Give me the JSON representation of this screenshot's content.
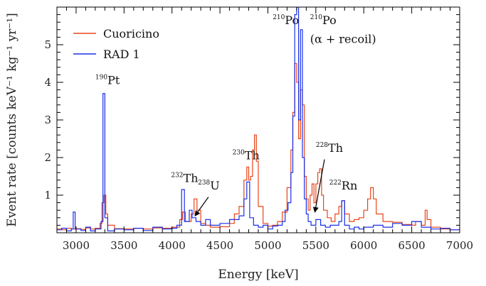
{
  "chart_data": {
    "type": "line",
    "xlabel": "Energy [keV]",
    "ylabel": "Event rate [counts keV⁻¹ kg⁻¹ yr⁻¹]",
    "xlim": [
      2800,
      7000
    ],
    "ylim": [
      0,
      6
    ],
    "x_ticks": [
      3000,
      3500,
      4000,
      4500,
      5000,
      5500,
      6000,
      6500,
      7000
    ],
    "y_ticks": [
      1,
      2,
      3,
      4,
      5
    ],
    "grid": false,
    "legend_position": "top-left",
    "series": [
      {
        "name": "Cuoricino",
        "color": "#e8451a",
        "points": [
          [
            2800,
            0.1
          ],
          [
            2850,
            0.08
          ],
          [
            2900,
            0.12
          ],
          [
            2950,
            0.1
          ],
          [
            3000,
            0.11
          ],
          [
            3050,
            0.09
          ],
          [
            3100,
            0.13
          ],
          [
            3150,
            0.1
          ],
          [
            3200,
            0.12
          ],
          [
            3250,
            0.25
          ],
          [
            3270,
            0.8
          ],
          [
            3290,
            1.0
          ],
          [
            3310,
            0.5
          ],
          [
            3330,
            0.2
          ],
          [
            3400,
            0.11
          ],
          [
            3500,
            0.1
          ],
          [
            3600,
            0.12
          ],
          [
            3700,
            0.1
          ],
          [
            3800,
            0.13
          ],
          [
            3900,
            0.12
          ],
          [
            4000,
            0.15
          ],
          [
            4080,
            0.35
          ],
          [
            4110,
            0.55
          ],
          [
            4140,
            0.3
          ],
          [
            4200,
            0.5
          ],
          [
            4230,
            0.9
          ],
          [
            4260,
            0.6
          ],
          [
            4300,
            0.25
          ],
          [
            4350,
            0.2
          ],
          [
            4400,
            0.15
          ],
          [
            4500,
            0.16
          ],
          [
            4600,
            0.25
          ],
          [
            4650,
            0.5
          ],
          [
            4700,
            0.7
          ],
          [
            4750,
            1.4
          ],
          [
            4780,
            1.75
          ],
          [
            4800,
            1.4
          ],
          [
            4820,
            1.5
          ],
          [
            4840,
            2.2
          ],
          [
            4860,
            2.6
          ],
          [
            4880,
            1.9
          ],
          [
            4900,
            0.7
          ],
          [
            4950,
            0.25
          ],
          [
            5000,
            0.18
          ],
          [
            5050,
            0.2
          ],
          [
            5100,
            0.3
          ],
          [
            5150,
            0.55
          ],
          [
            5200,
            1.2
          ],
          [
            5240,
            2.2
          ],
          [
            5260,
            3.2
          ],
          [
            5280,
            4.5
          ],
          [
            5300,
            4.0
          ],
          [
            5320,
            2.5
          ],
          [
            5340,
            3.8
          ],
          [
            5360,
            3.4
          ],
          [
            5380,
            1.5
          ],
          [
            5400,
            0.9
          ],
          [
            5420,
            0.6
          ],
          [
            5440,
            1.0
          ],
          [
            5460,
            1.3
          ],
          [
            5480,
            0.8
          ],
          [
            5500,
            1.3
          ],
          [
            5520,
            1.6
          ],
          [
            5540,
            1.7
          ],
          [
            5560,
            1.0
          ],
          [
            5580,
            0.6
          ],
          [
            5620,
            0.4
          ],
          [
            5660,
            0.3
          ],
          [
            5700,
            0.5
          ],
          [
            5740,
            0.7
          ],
          [
            5770,
            0.85
          ],
          [
            5800,
            0.5
          ],
          [
            5850,
            0.3
          ],
          [
            5900,
            0.35
          ],
          [
            5950,
            0.4
          ],
          [
            6000,
            0.6
          ],
          [
            6040,
            0.9
          ],
          [
            6070,
            1.2
          ],
          [
            6100,
            0.9
          ],
          [
            6130,
            0.5
          ],
          [
            6200,
            0.3
          ],
          [
            6300,
            0.28
          ],
          [
            6400,
            0.22
          ],
          [
            6500,
            0.2
          ],
          [
            6540,
            0.3
          ],
          [
            6600,
            0.2
          ],
          [
            6640,
            0.6
          ],
          [
            6660,
            0.35
          ],
          [
            6700,
            0.15
          ],
          [
            6800,
            0.1
          ],
          [
            6900,
            0.08
          ],
          [
            7000,
            0.1
          ]
        ]
      },
      {
        "name": "RAD 1",
        "color": "#1a30e8",
        "points": [
          [
            2800,
            0.08
          ],
          [
            2850,
            0.12
          ],
          [
            2900,
            0.05
          ],
          [
            2950,
            0.1
          ],
          [
            2970,
            0.55
          ],
          [
            2990,
            0.1
          ],
          [
            3050,
            0.06
          ],
          [
            3100,
            0.15
          ],
          [
            3150,
            0.05
          ],
          [
            3200,
            0.1
          ],
          [
            3260,
            0.3
          ],
          [
            3280,
            3.7
          ],
          [
            3300,
            0.4
          ],
          [
            3330,
            0.05
          ],
          [
            3400,
            0.1
          ],
          [
            3500,
            0.08
          ],
          [
            3600,
            0.12
          ],
          [
            3700,
            0.06
          ],
          [
            3800,
            0.15
          ],
          [
            3900,
            0.1
          ],
          [
            4000,
            0.12
          ],
          [
            4050,
            0.2
          ],
          [
            4100,
            1.15
          ],
          [
            4130,
            0.3
          ],
          [
            4180,
            0.6
          ],
          [
            4210,
            0.4
          ],
          [
            4250,
            0.3
          ],
          [
            4300,
            0.2
          ],
          [
            4350,
            0.35
          ],
          [
            4400,
            0.2
          ],
          [
            4500,
            0.25
          ],
          [
            4600,
            0.35
          ],
          [
            4700,
            0.45
          ],
          [
            4750,
            0.9
          ],
          [
            4780,
            1.35
          ],
          [
            4810,
            0.4
          ],
          [
            4850,
            0.2
          ],
          [
            4900,
            0.15
          ],
          [
            4950,
            0.2
          ],
          [
            5000,
            0.1
          ],
          [
            5050,
            0.18
          ],
          [
            5100,
            0.2
          ],
          [
            5150,
            0.3
          ],
          [
            5180,
            0.6
          ],
          [
            5210,
            0.8
          ],
          [
            5240,
            1.6
          ],
          [
            5260,
            3.1
          ],
          [
            5280,
            5.8
          ],
          [
            5300,
            6.0
          ],
          [
            5320,
            3.0
          ],
          [
            5340,
            5.4
          ],
          [
            5360,
            2.0
          ],
          [
            5380,
            0.9
          ],
          [
            5400,
            0.5
          ],
          [
            5420,
            0.3
          ],
          [
            5450,
            0.2
          ],
          [
            5500,
            0.35
          ],
          [
            5550,
            0.2
          ],
          [
            5600,
            0.15
          ],
          [
            5650,
            0.2
          ],
          [
            5700,
            0.2
          ],
          [
            5740,
            0.3
          ],
          [
            5770,
            0.85
          ],
          [
            5800,
            0.2
          ],
          [
            5850,
            0.1
          ],
          [
            5900,
            0.15
          ],
          [
            5950,
            0.1
          ],
          [
            6000,
            0.15
          ],
          [
            6100,
            0.2
          ],
          [
            6200,
            0.15
          ],
          [
            6300,
            0.25
          ],
          [
            6400,
            0.2
          ],
          [
            6500,
            0.3
          ],
          [
            6600,
            0.15
          ],
          [
            6700,
            0.1
          ],
          [
            6800,
            0.12
          ],
          [
            6900,
            0.08
          ],
          [
            7000,
            0.1
          ]
        ]
      }
    ],
    "annotations": [
      {
        "sup": "190",
        "base": "Pt",
        "x": 3200,
        "y": 3.95
      },
      {
        "sup": "232",
        "base": "Th",
        "x": 3990,
        "y": 1.35
      },
      {
        "sup": "238",
        "base": "U",
        "x": 4270,
        "y": 1.15
      },
      {
        "sup": "230",
        "base": "Th",
        "x": 4630,
        "y": 1.95
      },
      {
        "sup": "210",
        "base": "Po",
        "x": 5050,
        "y": 5.55
      },
      {
        "sup": "210",
        "base": "Po",
        "x": 5440,
        "y": 5.55
      },
      {
        "sup": "",
        "base": "(α + recoil)",
        "x": 5440,
        "y": 5.05
      },
      {
        "sup": "228",
        "base": "Th",
        "x": 5500,
        "y": 2.15
      },
      {
        "sup": "222",
        "base": "Rn",
        "x": 5640,
        "y": 1.15
      }
    ],
    "arrows": [
      {
        "from": [
          4380,
          0.95
        ],
        "to": [
          4240,
          0.45
        ]
      },
      {
        "from": [
          5590,
          1.95
        ],
        "to": [
          5490,
          0.55
        ]
      }
    ]
  }
}
